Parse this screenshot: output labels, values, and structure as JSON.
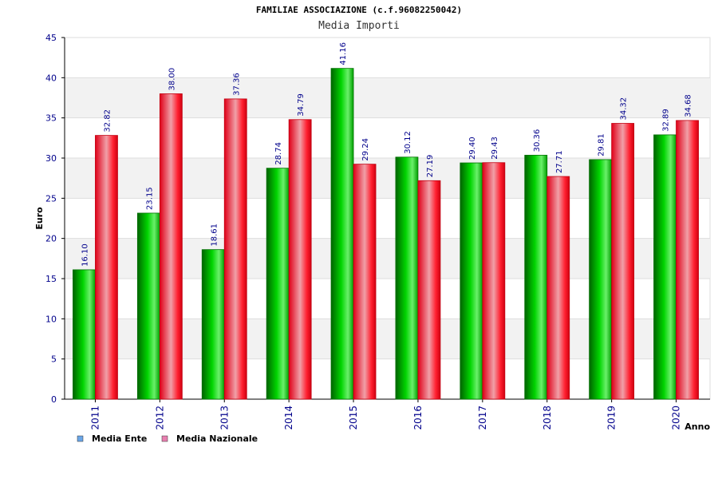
{
  "chart_data": {
    "type": "bar",
    "title": "FAMILIAE ASSOCIAZIONE (c.f.96082250042)",
    "subtitle": "Media Importi",
    "xlabel": "Anno",
    "ylabel": "Euro",
    "ylim": [
      0,
      45
    ],
    "yticks": [
      "0",
      "5",
      "10",
      "15",
      "20",
      "25",
      "30",
      "35",
      "40",
      "45"
    ],
    "grid": true,
    "legend_position": "bottom-left",
    "categories": [
      "2011",
      "2012",
      "2013",
      "2014",
      "2015",
      "2016",
      "2017",
      "2018",
      "2019",
      "2020"
    ],
    "series": [
      {
        "name": "Media Ente",
        "color": "#00b000",
        "legend_color": "#6aa6e8",
        "values": [
          16.1,
          23.15,
          18.61,
          28.74,
          41.16,
          30.12,
          29.4,
          30.36,
          29.81,
          32.89
        ],
        "labels": [
          "16.10",
          "23.15",
          "18.61",
          "28.74",
          "41.16",
          "30.12",
          "29.40",
          "30.36",
          "29.81",
          "32.89"
        ]
      },
      {
        "name": "Media Nazionale",
        "color": "#ff1a2a",
        "legend_color": "#e87fb0",
        "values": [
          32.82,
          38.0,
          37.36,
          34.79,
          29.24,
          27.19,
          29.43,
          27.71,
          34.32,
          34.68
        ],
        "labels": [
          "32.82",
          "38.00",
          "37.36",
          "34.79",
          "29.24",
          "27.19",
          "29.43",
          "27.71",
          "34.32",
          "34.68"
        ]
      }
    ]
  }
}
